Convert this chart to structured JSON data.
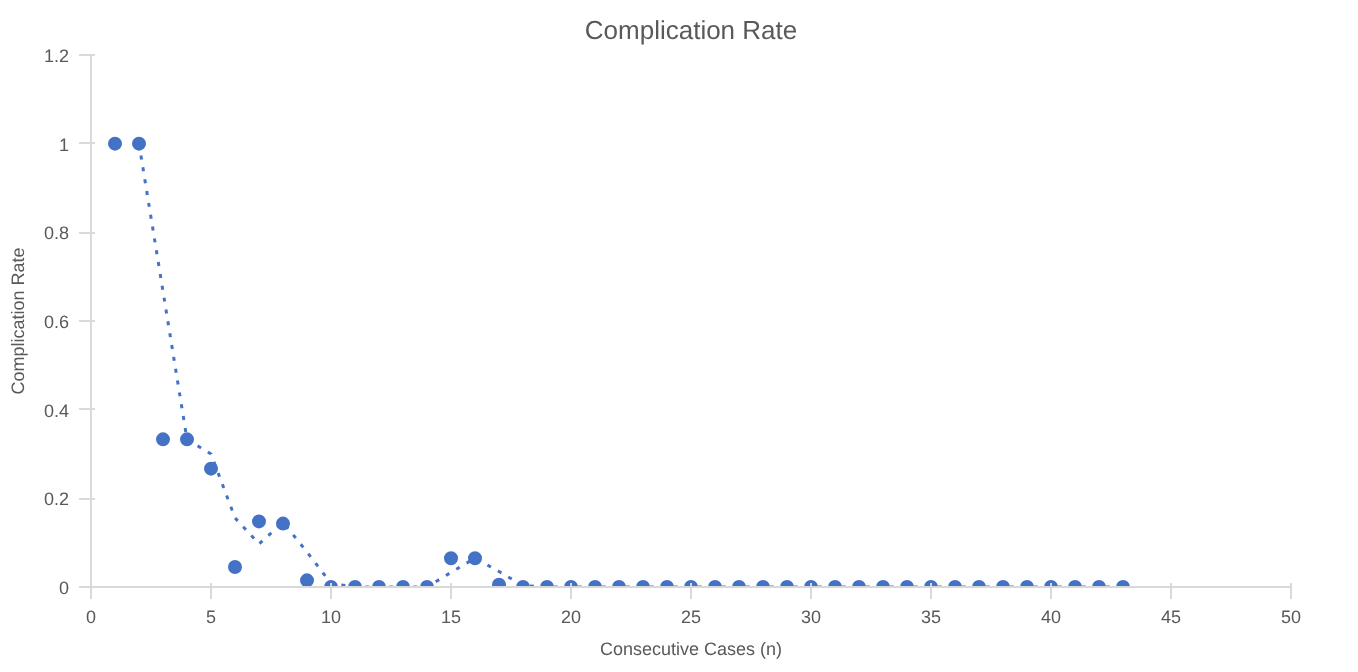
{
  "chart_data": {
    "type": "scatter",
    "title": "Complication Rate",
    "xlabel": "Consecutive Cases (n)",
    "ylabel": "Complication Rate",
    "xlim": [
      0,
      50
    ],
    "xticks": [
      0,
      5,
      10,
      15,
      20,
      25,
      30,
      35,
      40,
      45,
      50
    ],
    "ylim": [
      0,
      1.2
    ],
    "yticks": [
      0,
      0.2,
      0.4,
      0.6,
      0.8,
      1,
      1.2
    ],
    "grid": false,
    "series": [
      {
        "color": "#4472c4",
        "marker": "circle",
        "x": [
          1,
          2,
          3,
          4,
          5,
          6,
          7,
          8,
          9,
          10,
          11,
          12,
          13,
          14,
          15,
          16,
          17,
          18,
          19,
          20,
          21,
          22,
          23,
          24,
          25,
          26,
          27,
          28,
          29,
          30,
          31,
          32,
          33,
          34,
          35,
          36,
          37,
          38,
          39,
          40,
          41,
          42,
          43
        ],
        "values": [
          1,
          1,
          0.333,
          0.333,
          0.267,
          0.045,
          0.148,
          0.143,
          0.015,
          0,
          0,
          0,
          0,
          0,
          0.065,
          0.065,
          0.005,
          0,
          0,
          0,
          0,
          0,
          0,
          0,
          0,
          0,
          0,
          0,
          0,
          0,
          0,
          0,
          0,
          0,
          0,
          0,
          0,
          0,
          0,
          0,
          0,
          0,
          0
        ]
      },
      {
        "type": "line",
        "color": "#4472c4",
        "line_style": "dotted",
        "x": [
          2,
          3,
          4,
          5,
          6,
          7,
          8,
          9,
          10,
          11,
          12,
          13,
          14,
          15,
          16,
          17,
          18,
          19,
          20,
          21,
          22,
          23,
          24,
          25,
          26,
          27,
          28,
          29,
          30,
          31,
          32,
          33,
          34,
          35,
          36,
          37,
          38,
          39,
          40,
          41,
          42,
          43
        ],
        "values": [
          1,
          0.667,
          0.333,
          0.3,
          0.156,
          0.097,
          0.146,
          0.079,
          0.008,
          0,
          0,
          0,
          0,
          0.033,
          0.065,
          0.035,
          0.003,
          0,
          0,
          0,
          0,
          0,
          0,
          0,
          0,
          0,
          0,
          0,
          0,
          0,
          0,
          0,
          0,
          0,
          0,
          0,
          0,
          0,
          0,
          0,
          0,
          0
        ]
      }
    ]
  }
}
